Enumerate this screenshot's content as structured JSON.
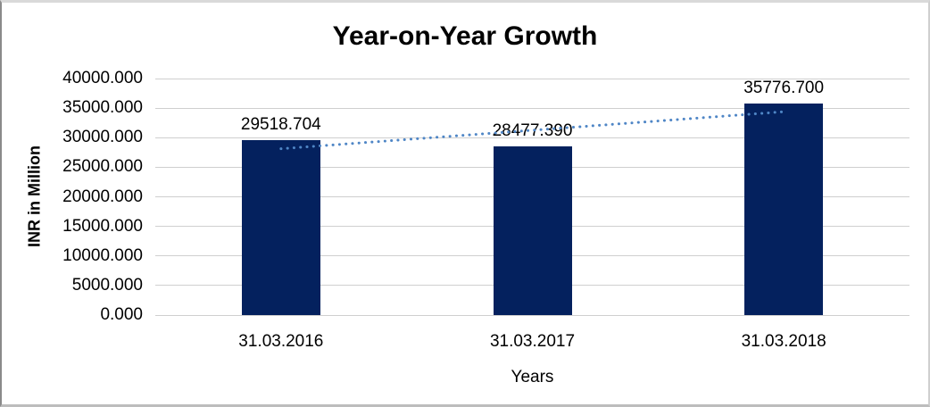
{
  "chart_data": {
    "type": "bar",
    "title": "Year-on-Year Growth",
    "xlabel": "Years",
    "ylabel": "INR in Million",
    "categories": [
      "31.03.2016",
      "31.03.2017",
      "31.03.2018"
    ],
    "values": [
      29518.704,
      28477.39,
      35776.7
    ],
    "data_labels": [
      "29518.704",
      "28477.390",
      "35776.700"
    ],
    "y_tick_labels": [
      "0.000",
      "5000.000",
      "10000.000",
      "15000.000",
      "20000.000",
      "25000.000",
      "30000.000",
      "35000.000",
      "40000.000"
    ],
    "ylim": [
      0,
      40000
    ],
    "grid": true,
    "legend": false,
    "trendline": {
      "type": "linear",
      "style": "dotted"
    },
    "colors": {
      "bar": "#04215e",
      "trendline": "#4f86c6",
      "gridline": "#cfcfcf",
      "text": "#000000",
      "background": "#ffffff"
    }
  }
}
